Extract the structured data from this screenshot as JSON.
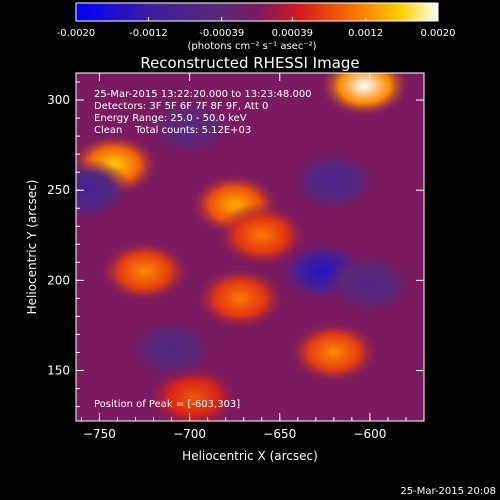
{
  "figure": {
    "title": "Reconstructed RHESSI Image",
    "annotations": [
      "25-Mar-2015 13:22:20.000 to 13:23:48.000",
      "Detectors: 3F 5F 6F 7F 8F 9F, Att 0",
      "Energy Range: 25.0 - 50.0 keV",
      "Clean    Total counts: 5.12E+03"
    ],
    "peak_label": "Position of Peak = [-603,303]",
    "footer_date": "25-Mar-2015 20:08"
  },
  "colorbar": {
    "ticks": [
      "-0.0020",
      "-0.0012",
      "-0.00039",
      "0.00039",
      "0.0012",
      "0.0020"
    ],
    "unit_label": "(photons cm⁻² s⁻¹ asec⁻²)",
    "range": [
      -0.002,
      0.002
    ]
  },
  "chart_data": {
    "type": "heatmap",
    "title": "Reconstructed RHESSI Image",
    "xlabel": "Heliocentric X (arcsec)",
    "ylabel": "Heliocentric Y (arcsec)",
    "xlim": [
      -763,
      -570
    ],
    "ylim": [
      122,
      315
    ],
    "x_ticks": [
      -750,
      -700,
      -650,
      -600
    ],
    "y_ticks": [
      150,
      200,
      250,
      300
    ],
    "colormap": "blue-purple-red-yellow-white",
    "value_range": [
      -0.002,
      0.002
    ],
    "peak_position": [
      -603,
      303
    ],
    "sources": [
      {
        "x": -603,
        "y": 308,
        "value": 0.002
      },
      {
        "x": -742,
        "y": 264,
        "value": 0.0016
      },
      {
        "x": -675,
        "y": 242,
        "value": 0.0014
      },
      {
        "x": -660,
        "y": 225,
        "value": 0.0011
      },
      {
        "x": -725,
        "y": 205,
        "value": 0.0012
      },
      {
        "x": -672,
        "y": 190,
        "value": 0.0011
      },
      {
        "x": -620,
        "y": 160,
        "value": 0.0012
      },
      {
        "x": -698,
        "y": 135,
        "value": 0.0009
      },
      {
        "x": -626,
        "y": 205,
        "value": -0.0015
      },
      {
        "x": -620,
        "y": 255,
        "value": -0.0008
      },
      {
        "x": -757,
        "y": 250,
        "value": -0.0009
      },
      {
        "x": -710,
        "y": 162,
        "value": -0.0006
      },
      {
        "x": -700,
        "y": 285,
        "value": -0.0005
      },
      {
        "x": -600,
        "y": 198,
        "value": -0.0006
      }
    ]
  }
}
